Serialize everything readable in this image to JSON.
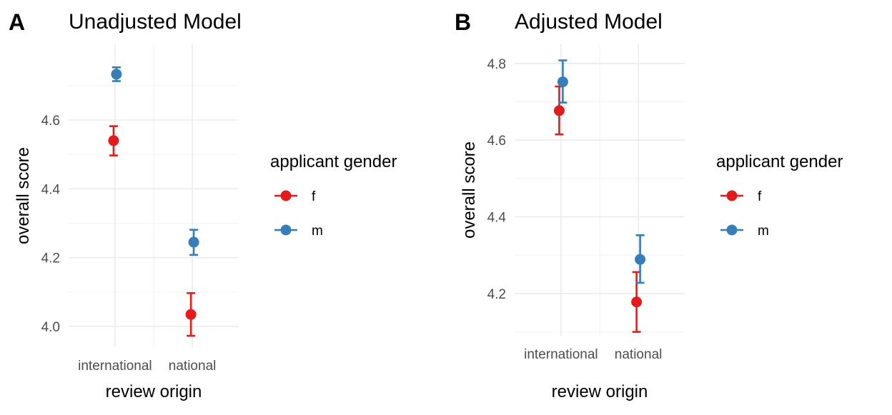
{
  "chart_data": [
    {
      "type": "scatter",
      "panel_tag": "A",
      "title": "Unadjusted Model",
      "xlabel": "review origin",
      "ylabel": "overall score",
      "categories": [
        "international",
        "national"
      ],
      "ylim": [
        3.94,
        4.82
      ],
      "yticks": [
        4.0,
        4.2,
        4.4,
        4.6
      ],
      "ytick_labels": [
        "4.0",
        "4.2",
        "4.4",
        "4.6"
      ],
      "grid": true,
      "legend": {
        "title": "applicant gender",
        "position": "right"
      },
      "series": [
        {
          "name": "f",
          "color": "#E41A1C",
          "values": [
            4.54,
            4.035
          ],
          "lower": [
            4.497,
            3.973
          ],
          "upper": [
            4.582,
            4.097
          ]
        },
        {
          "name": "m",
          "color": "#377EB8",
          "values": [
            4.733,
            4.245
          ],
          "lower": [
            4.713,
            4.208
          ],
          "upper": [
            4.753,
            4.281
          ]
        }
      ]
    },
    {
      "type": "scatter",
      "panel_tag": "B",
      "title": "Adjusted Model",
      "xlabel": "review origin",
      "ylabel": "overall score",
      "categories": [
        "international",
        "national"
      ],
      "ylim": [
        4.09,
        4.85
      ],
      "yticks": [
        4.2,
        4.4,
        4.6,
        4.8
      ],
      "ytick_labels": [
        "4.2",
        "4.4",
        "4.6",
        "4.8"
      ],
      "grid": true,
      "legend": {
        "title": "applicant gender",
        "position": "right"
      },
      "series": [
        {
          "name": "f",
          "color": "#E41A1C",
          "values": [
            4.677,
            4.178
          ],
          "lower": [
            4.615,
            4.1
          ],
          "upper": [
            4.74,
            4.256
          ]
        },
        {
          "name": "m",
          "color": "#377EB8",
          "values": [
            4.752,
            4.289
          ],
          "lower": [
            4.698,
            4.228
          ],
          "upper": [
            4.808,
            4.352
          ]
        }
      ]
    }
  ]
}
